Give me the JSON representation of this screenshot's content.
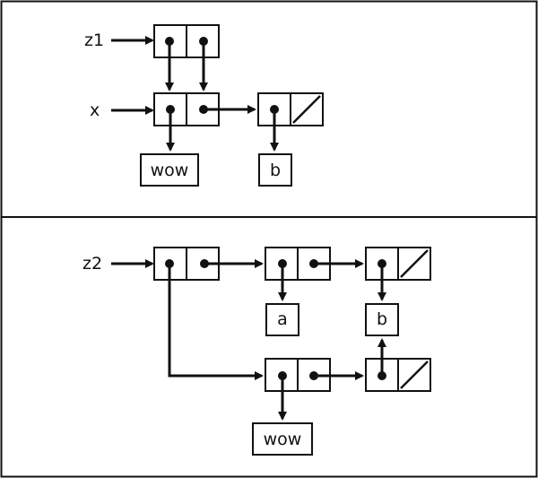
{
  "panel_top": {
    "variables": [
      {
        "id": "z1",
        "label": "z1"
      },
      {
        "id": "x",
        "label": "x"
      }
    ],
    "atoms": [
      {
        "id": "wow1",
        "text": "wow"
      },
      {
        "id": "b1",
        "text": "b"
      }
    ]
  },
  "panel_bottom": {
    "variables": [
      {
        "id": "z2",
        "label": "z2"
      }
    ],
    "atoms": [
      {
        "id": "a",
        "text": "a"
      },
      {
        "id": "b2",
        "text": "b"
      },
      {
        "id": "wow2",
        "text": "wow"
      }
    ]
  },
  "colors": {
    "ink": "#111111",
    "background": "#ffffff"
  }
}
